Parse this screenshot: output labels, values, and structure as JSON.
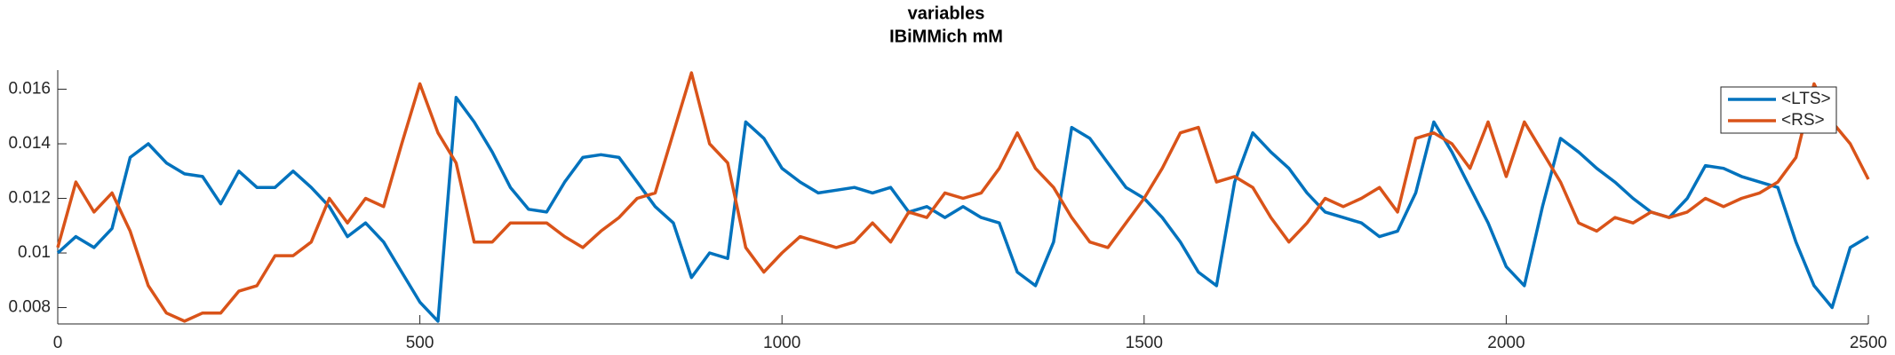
{
  "chart_data": {
    "type": "line",
    "title": "variables",
    "subtitle": "IBiMMich mM",
    "x": [
      0,
      25,
      50,
      75,
      100,
      125,
      150,
      175,
      200,
      225,
      250,
      275,
      300,
      325,
      350,
      375,
      400,
      425,
      450,
      475,
      500,
      525,
      550,
      575,
      600,
      625,
      650,
      675,
      700,
      725,
      750,
      775,
      800,
      825,
      850,
      875,
      900,
      925,
      950,
      975,
      1000,
      1025,
      1050,
      1075,
      1100,
      1125,
      1150,
      1175,
      1200,
      1225,
      1250,
      1275,
      1300,
      1325,
      1350,
      1375,
      1400,
      1425,
      1450,
      1475,
      1500,
      1525,
      1550,
      1575,
      1600,
      1625,
      1650,
      1675,
      1700,
      1725,
      1750,
      1775,
      1800,
      1825,
      1850,
      1875,
      1900,
      1925,
      1950,
      1975,
      2000,
      2025,
      2050,
      2075,
      2100,
      2125,
      2150,
      2175,
      2200,
      2225,
      2250,
      2275,
      2300,
      2325,
      2350,
      2375,
      2400,
      2425,
      2450,
      2475,
      2500
    ],
    "series": [
      {
        "name": "<LTS>",
        "color": "#0072bd",
        "values": [
          0.01,
          0.0106,
          0.0102,
          0.0109,
          0.0135,
          0.014,
          0.0133,
          0.0129,
          0.0128,
          0.0118,
          0.013,
          0.0124,
          0.0124,
          0.013,
          0.0124,
          0.0117,
          0.0106,
          0.0111,
          0.0104,
          0.0093,
          0.0082,
          0.0075,
          0.0157,
          0.0148,
          0.0137,
          0.0124,
          0.0116,
          0.0115,
          0.0126,
          0.0135,
          0.0136,
          0.0135,
          0.0126,
          0.0117,
          0.0111,
          0.0091,
          0.01,
          0.0098,
          0.0148,
          0.0142,
          0.0131,
          0.0126,
          0.0122,
          0.0123,
          0.0124,
          0.0122,
          0.0124,
          0.0115,
          0.0117,
          0.0113,
          0.0117,
          0.0113,
          0.0111,
          0.0093,
          0.0088,
          0.0104,
          0.0146,
          0.0142,
          0.0133,
          0.0124,
          0.012,
          0.0113,
          0.0104,
          0.0093,
          0.0088,
          0.0126,
          0.0144,
          0.0137,
          0.0131,
          0.0122,
          0.0115,
          0.0113,
          0.0111,
          0.0106,
          0.0108,
          0.0122,
          0.0148,
          0.0137,
          0.0124,
          0.0111,
          0.0095,
          0.0088,
          0.0117,
          0.0142,
          0.0137,
          0.0131,
          0.0126,
          0.012,
          0.0115,
          0.0113,
          0.012,
          0.0132,
          0.0131,
          0.0128,
          0.0126,
          0.0124,
          0.0104,
          0.0088,
          0.008,
          0.0102,
          0.0106
        ]
      },
      {
        "name": "<RS>",
        "color": "#d95319",
        "values": [
          0.0102,
          0.0126,
          0.0115,
          0.0122,
          0.0108,
          0.0088,
          0.0078,
          0.0075,
          0.0078,
          0.0078,
          0.0086,
          0.0088,
          0.0099,
          0.0099,
          0.0104,
          0.012,
          0.0111,
          0.012,
          0.0117,
          0.014,
          0.0162,
          0.0144,
          0.0133,
          0.0104,
          0.0104,
          0.0111,
          0.0111,
          0.0111,
          0.0106,
          0.0102,
          0.0108,
          0.0113,
          0.012,
          0.0122,
          0.0144,
          0.0166,
          0.014,
          0.0133,
          0.0102,
          0.0093,
          0.01,
          0.0106,
          0.0104,
          0.0102,
          0.0104,
          0.0111,
          0.0104,
          0.0115,
          0.0113,
          0.0122,
          0.012,
          0.0122,
          0.0131,
          0.0144,
          0.0131,
          0.0124,
          0.0113,
          0.0104,
          0.0102,
          0.0111,
          0.012,
          0.0131,
          0.0144,
          0.0146,
          0.0126,
          0.0128,
          0.0124,
          0.0113,
          0.0104,
          0.0111,
          0.012,
          0.0117,
          0.012,
          0.0124,
          0.0115,
          0.0142,
          0.0144,
          0.014,
          0.0131,
          0.0148,
          0.0128,
          0.0148,
          0.0137,
          0.0126,
          0.0111,
          0.0108,
          0.0113,
          0.0111,
          0.0115,
          0.0113,
          0.0115,
          0.012,
          0.0117,
          0.012,
          0.0122,
          0.0126,
          0.0135,
          0.0162,
          0.0148,
          0.014,
          0.0127
        ]
      }
    ],
    "xlim": [
      0,
      2500
    ],
    "xticks": [
      0,
      500,
      1000,
      1500,
      2000,
      2500
    ],
    "ylim": [
      0.0074,
      0.0167
    ],
    "yticks": [
      0.008,
      0.01,
      0.012,
      0.014,
      0.016
    ],
    "legend": "upper right"
  }
}
